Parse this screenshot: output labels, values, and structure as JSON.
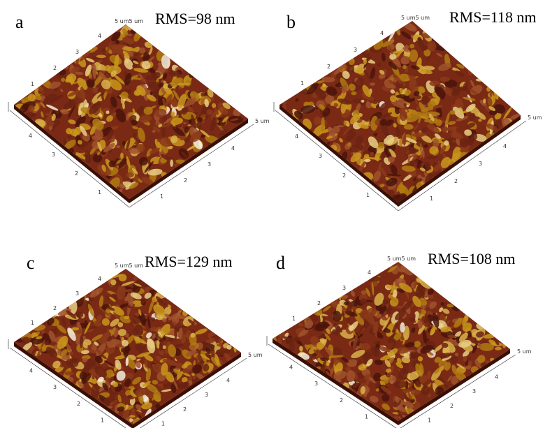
{
  "panels": [
    {
      "letter": "a",
      "rms": "RMS=98 nm",
      "top_label": "5 um5 um",
      "back_left": [
        "1",
        "2",
        "3",
        "4"
      ],
      "front_left": [
        "4",
        "3",
        "2",
        "1"
      ],
      "front_right": [
        "1",
        "2",
        "3",
        "4"
      ],
      "right_label": "5 um"
    },
    {
      "letter": "b",
      "rms": "RMS=118 nm",
      "top_label": "5 um5 um",
      "back_left": [
        "1",
        "2",
        "3",
        "4"
      ],
      "front_left": [
        "4",
        "3",
        "2",
        "1"
      ],
      "front_right": [
        "1",
        "2",
        "3",
        "4"
      ],
      "right_label": "5 um"
    },
    {
      "letter": "c",
      "rms": "RMS=129 nm",
      "top_label": "5 um5 um",
      "back_left": [
        "1",
        "2",
        "3",
        "4"
      ],
      "front_left": [
        "4",
        "3",
        "2",
        "1"
      ],
      "front_right": [
        "1",
        "2",
        "3",
        "4"
      ],
      "right_label": "5 um"
    },
    {
      "letter": "d",
      "rms": "RMS=108 nm",
      "top_label": "5 um5 um",
      "back_left": [
        "1",
        "2",
        "3",
        "4"
      ],
      "front_left": [
        "4",
        "3",
        "2",
        "1"
      ],
      "front_right": [
        "1",
        "2",
        "3",
        "4"
      ],
      "right_label": "5 um"
    }
  ]
}
